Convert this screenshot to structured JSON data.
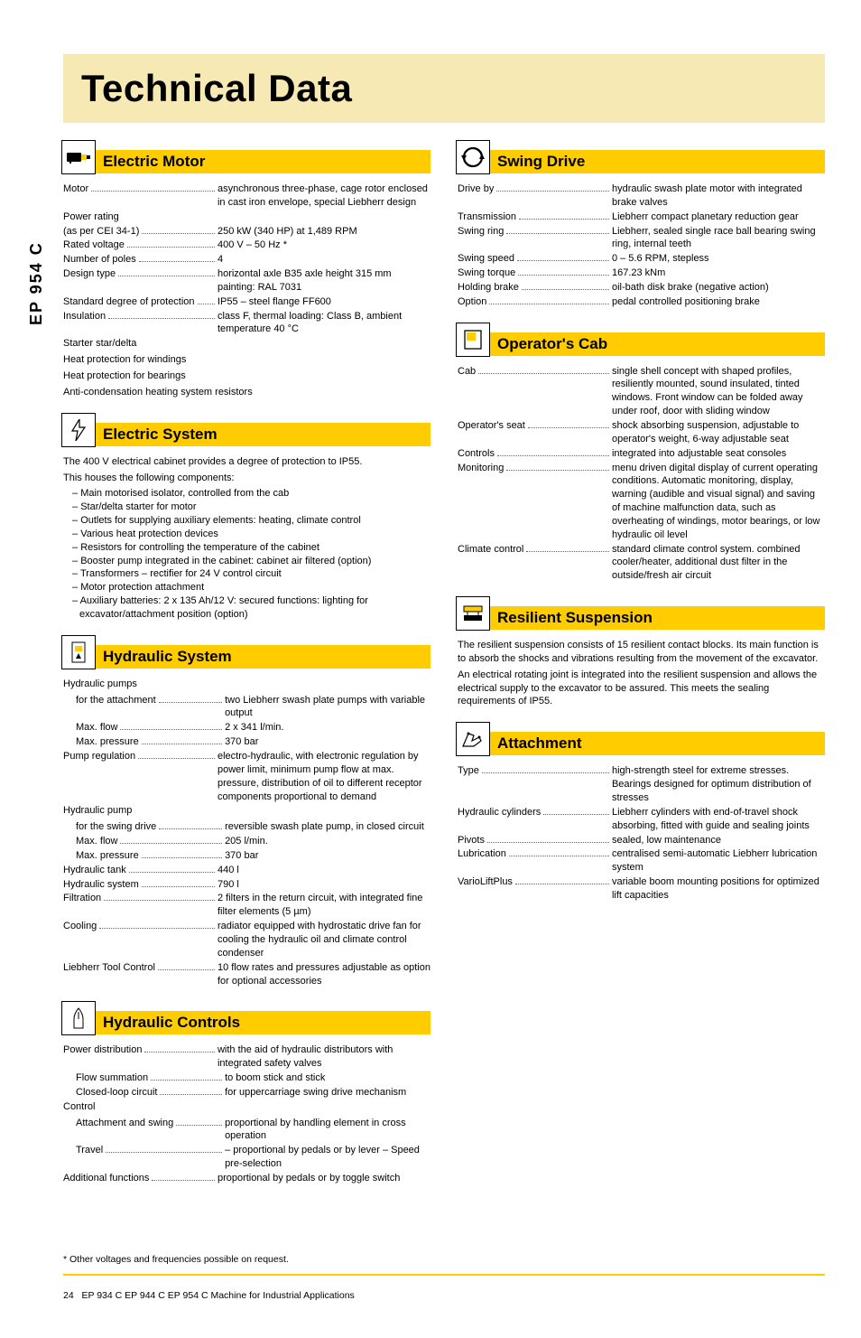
{
  "page": {
    "title": "Technical Data",
    "side_label": "EP 954 C",
    "footnote": "* Other voltages and frequencies possible on request.",
    "footer_page_num": "24",
    "footer_text": "EP 934 C  EP 944 C  EP 954 C Machine for Industrial Applications"
  },
  "sections": {
    "electric_motor": {
      "title": "Electric Motor",
      "rows": [
        {
          "label": "Motor",
          "value": "asynchronous three-phase, cage rotor enclosed in cast iron envelope, special Liebherr design"
        },
        {
          "label": "Power rating",
          "value": ""
        },
        {
          "label": "(as per CEI 34-1)",
          "value": "250 kW (340 HP) at 1,489 RPM"
        },
        {
          "label": "Rated voltage",
          "value": "400 V – 50 Hz *"
        },
        {
          "label": "Number of poles",
          "value": "4"
        },
        {
          "label": "Design type",
          "value": "horizontal axle B35 axle height 315 mm painting: RAL 7031"
        },
        {
          "label": "Standard degree of protection",
          "value": "IP55 – steel flange FF600"
        },
        {
          "label": "Insulation",
          "value": "class F, thermal loading: Class B, ambient temperature 40 °C"
        }
      ],
      "plain": [
        "Starter star/delta",
        "Heat protection for windings",
        "Heat protection for bearings",
        "Anti-condensation heating system resistors"
      ]
    },
    "electric_system": {
      "title": "Electric System",
      "intro": [
        "The 400 V electrical cabinet provides a degree of protection to IP55.",
        "This houses the following components:"
      ],
      "list": [
        "Main motorised isolator, controlled from the cab",
        "Star/delta starter for motor",
        "Outlets for supplying auxiliary elements: heating, climate control",
        "Various heat protection devices",
        "Resistors for controlling the temperature of the cabinet",
        "Booster pump integrated in the cabinet: cabinet air filtered (option)",
        "Transformers – rectifier for 24 V control circuit",
        "Motor protection attachment",
        "Auxiliary batteries: 2 x 135 Ah/12 V: secured functions: lighting for excavator/attachment position (option)"
      ]
    },
    "hydraulic_system": {
      "title": "Hydraulic System",
      "group1_label": "Hydraulic pumps",
      "group1": [
        {
          "label": "for the attachment",
          "value": "two Liebherr swash plate pumps with variable output",
          "indent": true
        },
        {
          "label": "Max. flow",
          "value": "2 x 341 l/min.",
          "indent": true
        },
        {
          "label": "Max. pressure",
          "value": "370 bar",
          "indent": true
        },
        {
          "label": "Pump regulation",
          "value": "electro-hydraulic, with electronic regulation by power limit, minimum pump flow at max. pressure, distribution of oil to different receptor components proportional to demand"
        }
      ],
      "group2_label": "Hydraulic pump",
      "group2": [
        {
          "label": "for the swing drive",
          "value": "reversible swash plate pump, in closed circuit",
          "indent": true
        },
        {
          "label": "Max. flow",
          "value": "205 l/min.",
          "indent": true
        },
        {
          "label": "Max. pressure",
          "value": "370 bar",
          "indent": true
        },
        {
          "label": "Hydraulic tank",
          "value": "440 l"
        },
        {
          "label": "Hydraulic system",
          "value": "790 l"
        },
        {
          "label": "Filtration",
          "value": "2 filters in the return circuit, with integrated fine filter elements (5 µm)"
        },
        {
          "label": "Cooling",
          "value": "radiator equipped with hydrostatic drive fan for cooling the hydraulic oil and climate control condenser"
        },
        {
          "label": "Liebherr Tool Control",
          "value": "10 flow rates and pressures adjustable as option for optional accessories"
        }
      ]
    },
    "hydraulic_controls": {
      "title": "Hydraulic Controls",
      "rows": [
        {
          "label": "Power distribution",
          "value": "with the aid of hydraulic distributors with integrated safety valves"
        },
        {
          "label": "Flow summation",
          "value": "to boom stick and stick",
          "indent": true
        },
        {
          "label": "Closed-loop circuit",
          "value": "for uppercarriage swing drive mechanism",
          "indent": true
        }
      ],
      "group2_label": "Control",
      "rows2": [
        {
          "label": "Attachment and swing",
          "value": "proportional by handling element in cross operation",
          "indent": true
        },
        {
          "label": "Travel",
          "value": "– proportional by pedals or by lever\n– Speed pre-selection",
          "indent": true
        },
        {
          "label": "Additional functions",
          "value": "proportional by pedals or by toggle switch"
        }
      ]
    },
    "swing_drive": {
      "title": "Swing Drive",
      "rows": [
        {
          "label": "Drive by",
          "value": "hydraulic swash plate motor with integrated brake valves"
        },
        {
          "label": "Transmission",
          "value": "Liebherr compact planetary reduction gear"
        },
        {
          "label": "Swing ring",
          "value": "Liebherr, sealed single race ball bearing swing ring, internal teeth"
        },
        {
          "label": "Swing speed",
          "value": "0 – 5.6 RPM, stepless"
        },
        {
          "label": "Swing torque",
          "value": "167.23 kNm"
        },
        {
          "label": "Holding brake",
          "value": "oil-bath disk brake (negative action)"
        },
        {
          "label": "Option",
          "value": "pedal controlled positioning brake"
        }
      ]
    },
    "operators_cab": {
      "title": "Operator's Cab",
      "rows": [
        {
          "label": "Cab",
          "value": "single shell concept with shaped profiles, resiliently mounted, sound insulated, tinted windows. Front window can be folded away under roof, door with sliding window"
        },
        {
          "label": "Operator's seat",
          "value": "shock absorbing suspension, adjustable to operator's weight, 6-way adjustable seat"
        },
        {
          "label": "Controls",
          "value": "integrated into adjustable seat consoles"
        },
        {
          "label": "Monitoring",
          "value": "menu driven digital display of current operating conditions. Automatic monitoring, display, warning (audible and visual signal) and saving of machine malfunction data, such as overheating of windings, motor bearings, or low hydraulic oil level"
        },
        {
          "label": "Climate control",
          "value": "standard climate control system. combined cooler/heater, additional dust filter in the outside/fresh air circuit"
        }
      ]
    },
    "resilient_suspension": {
      "title": "Resilient Suspension",
      "paragraphs": [
        "The resilient suspension consists of 15 resilient contact blocks. Its main function is to absorb the shocks and vibrations resulting from the movement of the excavator.",
        "An electrical rotating joint is integrated into the resilient suspension and allows the electrical supply to the excavator to be assured. This meets the sealing requirements of IP55."
      ]
    },
    "attachment": {
      "title": "Attachment",
      "rows": [
        {
          "label": "Type",
          "value": "high-strength steel for extreme stresses. Bearings designed for optimum distribution of stresses"
        },
        {
          "label": "Hydraulic cylinders",
          "value": "Liebherr cylinders with end-of-travel shock absorbing, fitted with guide and sealing joints"
        },
        {
          "label": "Pivots",
          "value": "sealed, low maintenance"
        },
        {
          "label": "Lubrication",
          "value": "centralised semi-automatic Liebherr lubrication system"
        },
        {
          "label": "VarioLiftPlus",
          "value": "variable boom mounting positions for optimized lift capacities"
        }
      ]
    }
  }
}
